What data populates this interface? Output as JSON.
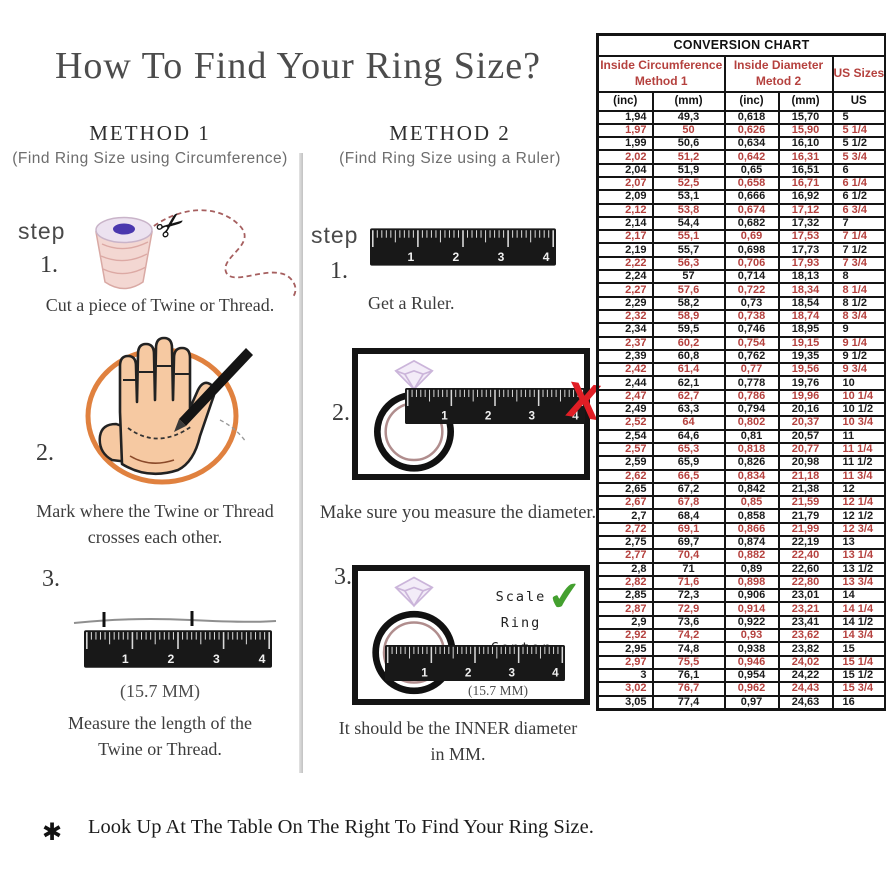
{
  "page": {
    "title": "How To Find Your Ring Size?",
    "footer_asterisk": "✱",
    "footer": "Look Up At The Table On The Right To Find Your Ring Size."
  },
  "method1": {
    "heading": "METHOD 1",
    "subheading": "(Find Ring Size using Circumference)",
    "step_label": "step",
    "steps": [
      {
        "num": "1.",
        "caption": "Cut a piece of  Twine or Thread."
      },
      {
        "num": "2.",
        "caption_line1": "Mark where the Twine or Thread",
        "caption_line2": "crosses each other."
      },
      {
        "num": "3.",
        "measure": "(15.7 MM)",
        "caption_line1": "Measure the length of the",
        "caption_line2": "Twine or Thread."
      }
    ]
  },
  "method2": {
    "heading": "METHOD 2",
    "subheading": "(Find Ring Size using a Ruler)",
    "step_label": "step",
    "steps": [
      {
        "num": "1.",
        "caption": "Get a Ruler."
      },
      {
        "num": "2.",
        "caption": "Make sure you measure the diameter.",
        "wrong_mark": "X"
      },
      {
        "num": "3.",
        "scale_note_line1": "Scale",
        "scale_note_line2": "Ring Center",
        "check_mark": "✔",
        "measure": "(15.7 MM)",
        "caption_line1": "It should be the INNER diameter",
        "caption_line2": "in MM."
      }
    ]
  },
  "ruler_marks": [
    "1",
    "2",
    "3",
    "4"
  ],
  "icons": {
    "scissors": "✂"
  },
  "colors": {
    "accent_red": "#b5413e",
    "table_black": "#1a1a1a",
    "check_green": "#44a02f",
    "x_red": "#e01e25",
    "twine_orange": "#e0813f",
    "skin": "#f6c9a2"
  },
  "conversion_chart": {
    "title": "CONVERSION CHART",
    "group_headers": [
      {
        "line1": "Inside Circumference",
        "line2": "Method 1"
      },
      {
        "line1": "Inside Diameter",
        "line2": "Metod 2"
      },
      {
        "line1": "US Sizes"
      }
    ],
    "columns": [
      "(inc)",
      "(mm)",
      "(inc)",
      "(mm)",
      "US"
    ],
    "rows": [
      [
        "1,94",
        "49,3",
        "0,618",
        "15,70",
        "5"
      ],
      [
        "1,97",
        "50",
        "0,626",
        "15,90",
        "5 1/4"
      ],
      [
        "1,99",
        "50,6",
        "0,634",
        "16,10",
        "5 1/2"
      ],
      [
        "2,02",
        "51,2",
        "0,642",
        "16,31",
        "5 3/4"
      ],
      [
        "2,04",
        "51,9",
        "0,65",
        "16,51",
        "6"
      ],
      [
        "2,07",
        "52,5",
        "0,658",
        "16,71",
        "6 1/4"
      ],
      [
        "2,09",
        "53,1",
        "0,666",
        "16,92",
        "6 1/2"
      ],
      [
        "2,12",
        "53,8",
        "0,674",
        "17,12",
        "6 3/4"
      ],
      [
        "2,14",
        "54,4",
        "0,682",
        "17,32",
        "7"
      ],
      [
        "2,17",
        "55,1",
        "0,69",
        "17,53",
        "7 1/4"
      ],
      [
        "2,19",
        "55,7",
        "0,698",
        "17,73",
        "7 1/2"
      ],
      [
        "2,22",
        "56,3",
        "0,706",
        "17,93",
        "7 3/4"
      ],
      [
        "2,24",
        "57",
        "0,714",
        "18,13",
        "8"
      ],
      [
        "2,27",
        "57,6",
        "0,722",
        "18,34",
        "8 1/4"
      ],
      [
        "2,29",
        "58,2",
        "0,73",
        "18,54",
        "8 1/2"
      ],
      [
        "2,32",
        "58,9",
        "0,738",
        "18,74",
        "8 3/4"
      ],
      [
        "2,34",
        "59,5",
        "0,746",
        "18,95",
        "9"
      ],
      [
        "2,37",
        "60,2",
        "0,754",
        "19,15",
        "9 1/4"
      ],
      [
        "2,39",
        "60,8",
        "0,762",
        "19,35",
        "9 1/2"
      ],
      [
        "2,42",
        "61,4",
        "0,77",
        "19,56",
        "9 3/4"
      ],
      [
        "2,44",
        "62,1",
        "0,778",
        "19,76",
        "10"
      ],
      [
        "2,47",
        "62,7",
        "0,786",
        "19,96",
        "10 1/4"
      ],
      [
        "2,49",
        "63,3",
        "0,794",
        "20,16",
        "10 1/2"
      ],
      [
        "2,52",
        "64",
        "0,802",
        "20,37",
        "10 3/4"
      ],
      [
        "2,54",
        "64,6",
        "0,81",
        "20,57",
        "11"
      ],
      [
        "2,57",
        "65,3",
        "0,818",
        "20,77",
        "11 1/4"
      ],
      [
        "2,59",
        "65,9",
        "0,826",
        "20,98",
        "11 1/2"
      ],
      [
        "2,62",
        "66,5",
        "0,834",
        "21,18",
        "11 3/4"
      ],
      [
        "2,65",
        "67,2",
        "0,842",
        "21,38",
        "12"
      ],
      [
        "2,67",
        "67,8",
        "0,85",
        "21,59",
        "12 1/4"
      ],
      [
        "2,7",
        "68,4",
        "0,858",
        "21,79",
        "12 1/2"
      ],
      [
        "2,72",
        "69,1",
        "0,866",
        "21,99",
        "12 3/4"
      ],
      [
        "2,75",
        "69,7",
        "0,874",
        "22,19",
        "13"
      ],
      [
        "2,77",
        "70,4",
        "0,882",
        "22,40",
        "13 1/4"
      ],
      [
        "2,8",
        "71",
        "0,89",
        "22,60",
        "13 1/2"
      ],
      [
        "2,82",
        "71,6",
        "0,898",
        "22,80",
        "13 3/4"
      ],
      [
        "2,85",
        "72,3",
        "0,906",
        "23,01",
        "14"
      ],
      [
        "2,87",
        "72,9",
        "0,914",
        "23,21",
        "14 1/4"
      ],
      [
        "2,9",
        "73,6",
        "0,922",
        "23,41",
        "14 1/2"
      ],
      [
        "2,92",
        "74,2",
        "0,93",
        "23,62",
        "14 3/4"
      ],
      [
        "2,95",
        "74,8",
        "0,938",
        "23,82",
        "15"
      ],
      [
        "2,97",
        "75,5",
        "0,946",
        "24,02",
        "15 1/4"
      ],
      [
        "3",
        "76,1",
        "0,954",
        "24,22",
        "15 1/2"
      ],
      [
        "3,02",
        "76,7",
        "0,962",
        "24,43",
        "15 3/4"
      ],
      [
        "3,05",
        "77,4",
        "0,97",
        "24,63",
        "16"
      ]
    ]
  }
}
